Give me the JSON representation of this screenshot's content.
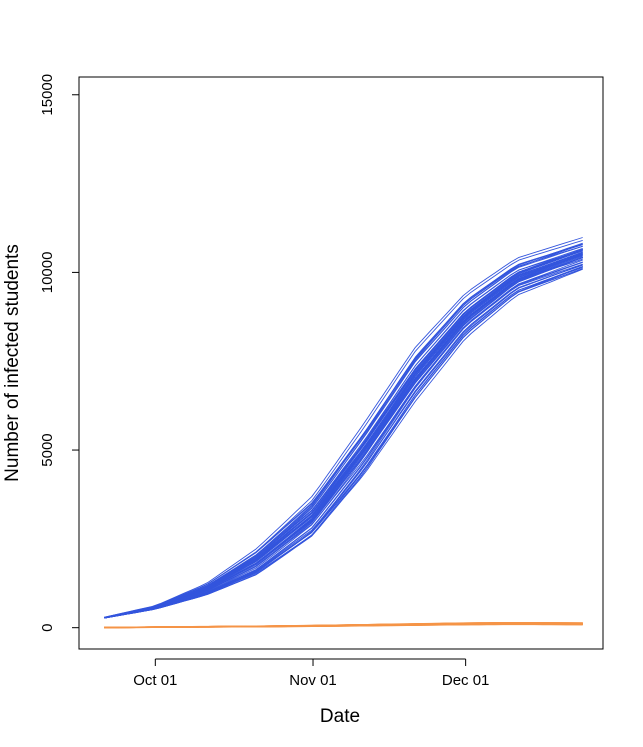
{
  "chart_data": {
    "type": "line",
    "title": "",
    "xlabel": "Date",
    "ylabel": "Number of infected students",
    "x_range": [
      "2020-09-16",
      "2020-12-28"
    ],
    "ylim": [
      -600,
      15500
    ],
    "x_ticks": [
      {
        "label": "Oct 01",
        "date": "2020-10-01"
      },
      {
        "label": "Nov 01",
        "date": "2020-11-01"
      },
      {
        "label": "Dec 01",
        "date": "2020-12-01"
      }
    ],
    "y_ticks": [
      0,
      5000,
      10000,
      15000
    ],
    "grid": false,
    "legend": "none",
    "colors": {
      "blue_ensemble": "#3355dd",
      "orange_ensemble": "#f59447"
    },
    "series": [
      {
        "color": "#3355dd",
        "description_group": "blue ensemble (central trajectory)",
        "dates": [
          "2020-09-21",
          "2020-10-01",
          "2020-10-11",
          "2020-10-21",
          "2020-11-01",
          "2020-11-11",
          "2020-11-21",
          "2020-12-01",
          "2020-12-11",
          "2020-12-24"
        ],
        "values": [
          280,
          560,
          1050,
          1800,
          3050,
          4900,
          7000,
          8700,
          9800,
          10450
        ],
        "ensemble_members": 50,
        "ensemble_spread": [
          10,
          40,
          130,
          300,
          450,
          550,
          550,
          450,
          380,
          350
        ]
      },
      {
        "color": "#f59447",
        "description_group": "orange ensemble (central trajectory)",
        "dates": [
          "2020-09-21",
          "2020-10-01",
          "2020-10-11",
          "2020-10-21",
          "2020-11-01",
          "2020-11-11",
          "2020-11-21",
          "2020-12-01",
          "2020-12-11",
          "2020-12-24"
        ],
        "values": [
          5,
          15,
          25,
          35,
          50,
          70,
          90,
          110,
          120,
          110
        ],
        "ensemble_members": 50,
        "ensemble_spread": [
          3,
          4,
          5,
          6,
          8,
          10,
          12,
          14,
          15,
          15
        ]
      }
    ]
  }
}
